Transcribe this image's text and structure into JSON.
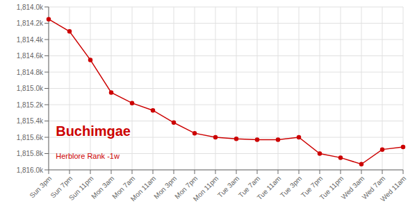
{
  "chart_data": {
    "type": "line",
    "title": "Buchimgae",
    "subtitle": "Herblore Rank -1w",
    "categories": [
      "Sun 3pm",
      "Sun 7pm",
      "Sun 11pm",
      "Mon 3am",
      "Mon 7am",
      "Mon 11am",
      "Mon 3pm",
      "Mon 7pm",
      "Mon 11pm",
      "Tue 3am",
      "Tue 7am",
      "Tue 11am",
      "Tue 3pm",
      "Tue 7pm",
      "Tue 11pm",
      "Wed 3am",
      "Wed 7am",
      "Wed 11am"
    ],
    "values": [
      1814.15,
      1814.3,
      1814.65,
      1815.05,
      1815.18,
      1815.27,
      1815.42,
      1815.55,
      1815.6,
      1815.62,
      1815.63,
      1815.63,
      1815.6,
      1815.8,
      1815.85,
      1815.93,
      1815.75,
      1815.72
    ],
    "color": "#cc0000",
    "marker": "circle",
    "ylim": [
      1816.0,
      1814.0
    ],
    "yticks": [
      {
        "value": 1814.0,
        "label": "1,814.0k"
      },
      {
        "value": 1814.2,
        "label": "1,814.2k"
      },
      {
        "value": 1814.4,
        "label": "1,814.4k"
      },
      {
        "value": 1814.6,
        "label": "1,814.6k"
      },
      {
        "value": 1814.8,
        "label": "1,814.8k"
      },
      {
        "value": 1815.0,
        "label": "1,815.0k"
      },
      {
        "value": 1815.2,
        "label": "1,815.2k"
      },
      {
        "value": 1815.4,
        "label": "1,815.4k"
      },
      {
        "value": 1815.6,
        "label": "1,815.6k"
      },
      {
        "value": 1815.8,
        "label": "1,815.8k"
      },
      {
        "value": 1816.0,
        "label": "1,816.0k"
      }
    ],
    "grid": true
  }
}
